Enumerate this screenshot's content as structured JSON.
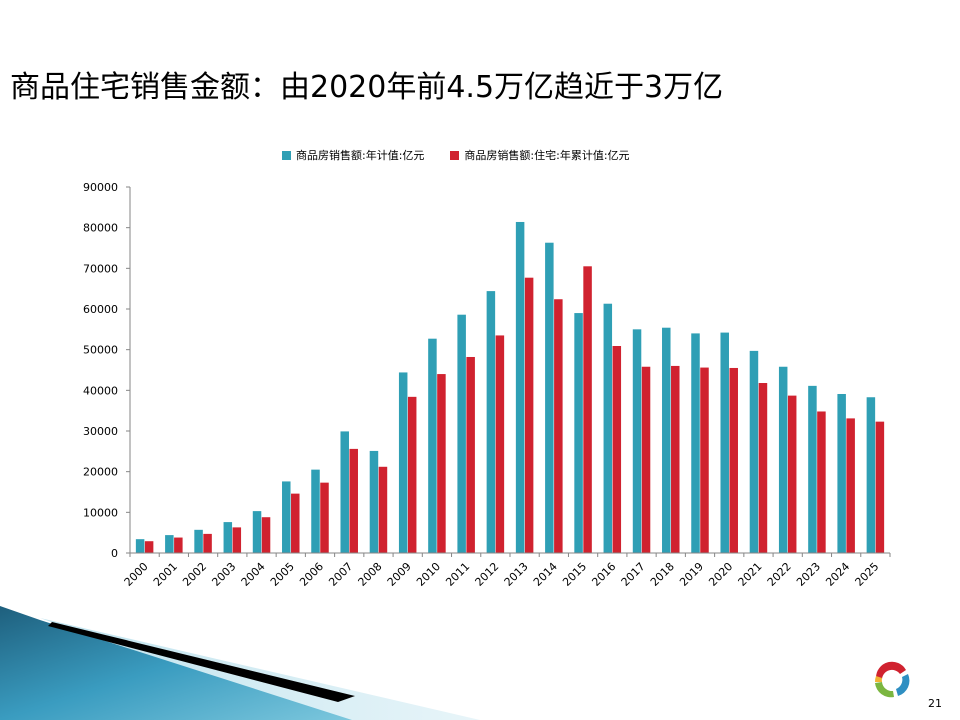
{
  "slide": {
    "title": "商品住宅销售金额：由2020年前4.5万亿趋近于3万亿",
    "page_number": "21"
  },
  "legend": {
    "series1": "商品房销售额:年计值:亿元",
    "series2": "商品房销售额:住宅:年累计值:亿元"
  },
  "colors": {
    "series1": "#2F9FB5",
    "series2": "#D0222F",
    "axis": "#868686"
  },
  "chart_data": {
    "type": "bar",
    "title": "",
    "xlabel": "",
    "ylabel": "",
    "ylim": [
      0,
      90000
    ],
    "yticks": [
      0,
      10000,
      20000,
      30000,
      40000,
      50000,
      60000,
      70000,
      80000,
      90000
    ],
    "grid": false,
    "legend_position": "top",
    "categories": [
      "2000",
      "2001",
      "2002",
      "2003",
      "2004",
      "2005",
      "2006",
      "2007",
      "2008",
      "2009",
      "2010",
      "2011",
      "2012",
      "2013",
      "2014",
      "2015",
      "2016",
      "2017",
      "2018",
      "2019",
      "2020",
      "2021",
      "2022",
      "2023",
      "2024",
      "2025"
    ],
    "series": [
      {
        "name": "商品房销售额:年计值:亿元",
        "values": [
          3400,
          4400,
          5700,
          7600,
          10300,
          17600,
          20500,
          29900,
          25100,
          44400,
          52700,
          58600,
          64400,
          81400,
          76300,
          59000,
          61300,
          55000,
          55400,
          54000,
          54200,
          49700,
          45800,
          41100,
          39100,
          38300
        ]
      },
      {
        "name": "商品房销售额:住宅:年累计值:亿元",
        "values": [
          2900,
          3800,
          4700,
          6300,
          8800,
          14600,
          17300,
          25600,
          21200,
          38400,
          44000,
          48200,
          53500,
          67700,
          62400,
          70500,
          50900,
          45800,
          46000,
          45600,
          45500,
          41800,
          38700,
          34800,
          33100,
          32300
        ]
      }
    ]
  }
}
